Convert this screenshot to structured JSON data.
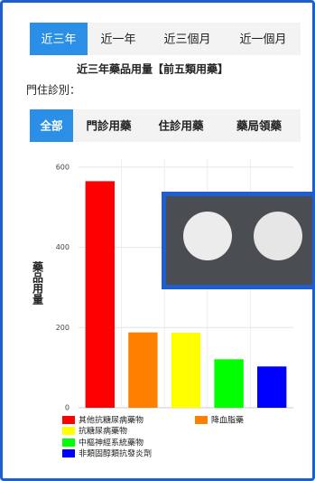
{
  "tabs": [
    "近三年",
    "近一年",
    "近三個月",
    "近一個月"
  ],
  "filter_label": "門住診別：",
  "filter_tabs": [
    "全部",
    "門診用藥",
    "住診用藥",
    "藥局領藥"
  ],
  "chart_data": {
    "type": "bar",
    "title": "近三年藥品用量【前五類用藥】",
    "ylabel": "藥品用量",
    "categories": [
      null
    ],
    "series": [
      {
        "name": "其他抗糖尿病藥物",
        "color": "#ff0000",
        "values": [
          565
        ]
      },
      {
        "name": "降血脂藥",
        "color": "#ff8000",
        "values": [
          188
        ]
      },
      {
        "name": "抗糖尿病藥物",
        "color": "#ffff00",
        "values": [
          187
        ]
      },
      {
        "name": "中樞神經系統藥物",
        "color": "#00ff00",
        "values": [
          121
        ]
      },
      {
        "name": "非類固醇類抗發炎劑",
        "color": "#0000ff",
        "values": [
          103
        ]
      }
    ],
    "ylim": [
      0,
      620
    ],
    "yticks": [
      0,
      200,
      400,
      600
    ],
    "grid": true
  }
}
